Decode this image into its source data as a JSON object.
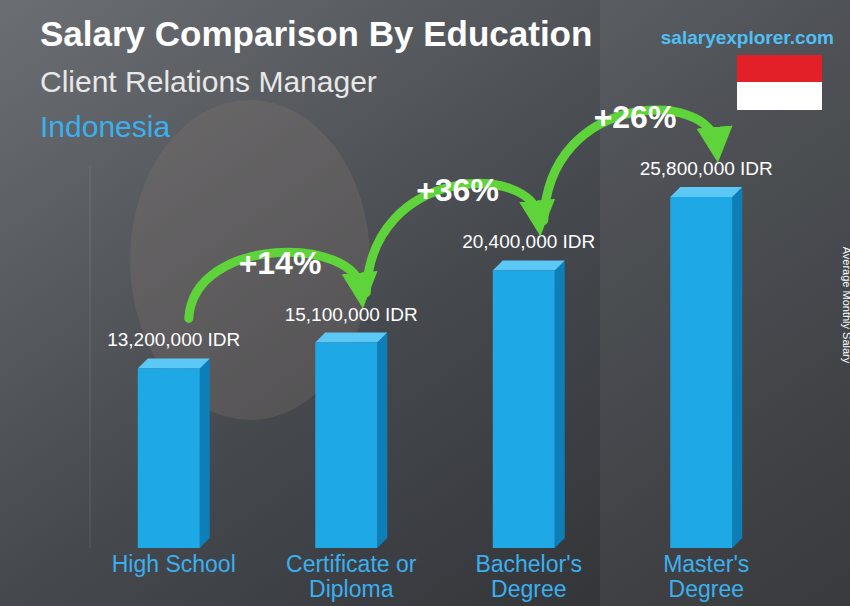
{
  "chart_data": {
    "type": "bar",
    "title": "Salary Comparison By Education",
    "subtitle": [
      "Client Relations Manager",
      "Indonesia"
    ],
    "source": "salaryexplorer.com",
    "ylabel": "Average Monthly Salary",
    "categories": [
      "High School",
      "Certificate or Diploma",
      "Bachelor's Degree",
      "Master's Degree"
    ],
    "values": [
      13200000,
      15100000,
      20400000,
      25800000
    ],
    "value_labels": [
      "13,200,000 IDR",
      "15,100,000 IDR",
      "20,400,000 IDR",
      "25,800,000 IDR"
    ],
    "annotations": [
      "+14%",
      "+36%",
      "+26%"
    ],
    "color": "#1ea8e6",
    "ylim": [
      0,
      28000000
    ],
    "data_labels": true,
    "tick_labels": false
  }
}
